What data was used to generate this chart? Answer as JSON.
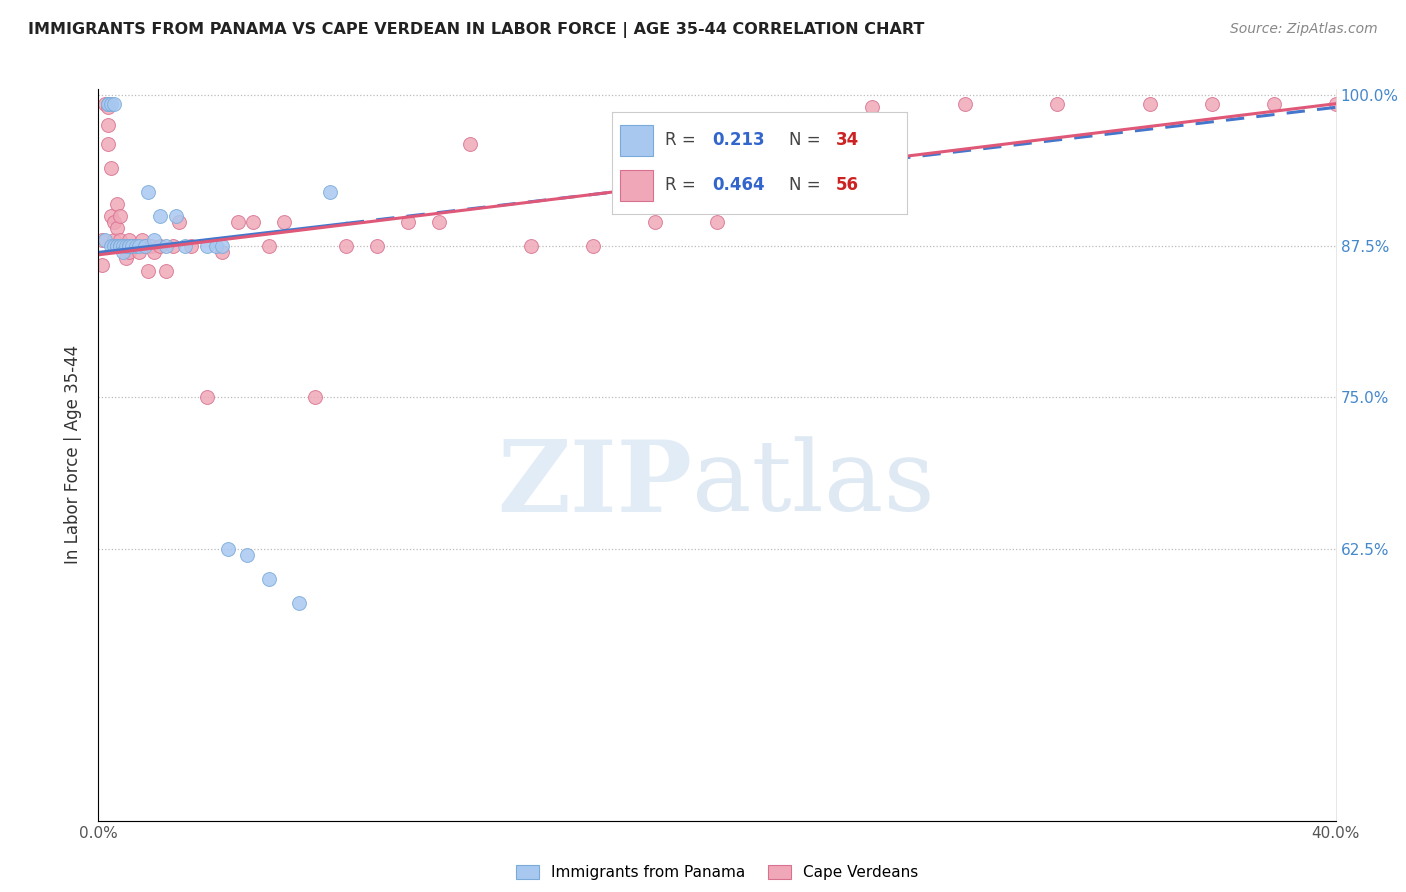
{
  "title": "IMMIGRANTS FROM PANAMA VS CAPE VERDEAN IN LABOR FORCE | AGE 35-44 CORRELATION CHART",
  "source_text": "Source: ZipAtlas.com",
  "ylabel": "In Labor Force | Age 35-44",
  "xlim": [
    0.0,
    0.4
  ],
  "ylim": [
    0.4,
    1.005
  ],
  "xticks": [
    0.0,
    0.05,
    0.1,
    0.15,
    0.2,
    0.25,
    0.3,
    0.35,
    0.4
  ],
  "yticks": [
    0.625,
    0.75,
    0.875,
    1.0
  ],
  "ytick_labels": [
    "62.5%",
    "75.0%",
    "87.5%",
    "100.0%"
  ],
  "xtick_labels": [
    "0.0%",
    "",
    "",
    "",
    "",
    "",
    "",
    "",
    "40.0%"
  ],
  "panama_color": "#a8c8f0",
  "panama_edge": "#7aaad8",
  "cape_verde_color": "#f0a8b8",
  "cape_verde_edge": "#d87090",
  "trend_panama_color": "#4477cc",
  "trend_cape_color": "#e05878",
  "panama_x": [
    0.002,
    0.003,
    0.003,
    0.004,
    0.004,
    0.005,
    0.005,
    0.006,
    0.006,
    0.007,
    0.007,
    0.008,
    0.008,
    0.009,
    0.01,
    0.01,
    0.011,
    0.012,
    0.013,
    0.015,
    0.016,
    0.018,
    0.02,
    0.022,
    0.025,
    0.028,
    0.035,
    0.038,
    0.04,
    0.042,
    0.048,
    0.055,
    0.065,
    0.075
  ],
  "panama_y": [
    0.88,
    0.993,
    0.993,
    0.993,
    0.875,
    0.993,
    0.875,
    0.875,
    0.875,
    0.875,
    0.875,
    0.875,
    0.87,
    0.875,
    0.875,
    0.875,
    0.875,
    0.875,
    0.875,
    0.875,
    0.92,
    0.88,
    0.9,
    0.875,
    0.9,
    0.875,
    0.875,
    0.875,
    0.875,
    0.625,
    0.62,
    0.6,
    0.58,
    0.92
  ],
  "cape_verde_x": [
    0.001,
    0.001,
    0.002,
    0.003,
    0.003,
    0.003,
    0.004,
    0.004,
    0.005,
    0.005,
    0.006,
    0.006,
    0.007,
    0.007,
    0.008,
    0.009,
    0.009,
    0.01,
    0.01,
    0.011,
    0.012,
    0.013,
    0.014,
    0.015,
    0.016,
    0.017,
    0.018,
    0.02,
    0.022,
    0.024,
    0.026,
    0.03,
    0.035,
    0.04,
    0.045,
    0.05,
    0.055,
    0.06,
    0.07,
    0.08,
    0.09,
    0.1,
    0.11,
    0.12,
    0.14,
    0.16,
    0.18,
    0.2,
    0.22,
    0.25,
    0.28,
    0.31,
    0.34,
    0.36,
    0.38,
    0.4
  ],
  "cape_verde_y": [
    0.88,
    0.86,
    0.993,
    0.99,
    0.975,
    0.96,
    0.94,
    0.9,
    0.895,
    0.88,
    0.91,
    0.89,
    0.9,
    0.88,
    0.875,
    0.875,
    0.865,
    0.88,
    0.87,
    0.875,
    0.875,
    0.87,
    0.88,
    0.875,
    0.855,
    0.875,
    0.87,
    0.875,
    0.855,
    0.875,
    0.895,
    0.875,
    0.75,
    0.87,
    0.895,
    0.895,
    0.875,
    0.895,
    0.75,
    0.875,
    0.875,
    0.895,
    0.895,
    0.96,
    0.875,
    0.875,
    0.895,
    0.895,
    0.96,
    0.99,
    0.993,
    0.993,
    0.993,
    0.993,
    0.993,
    0.993
  ]
}
